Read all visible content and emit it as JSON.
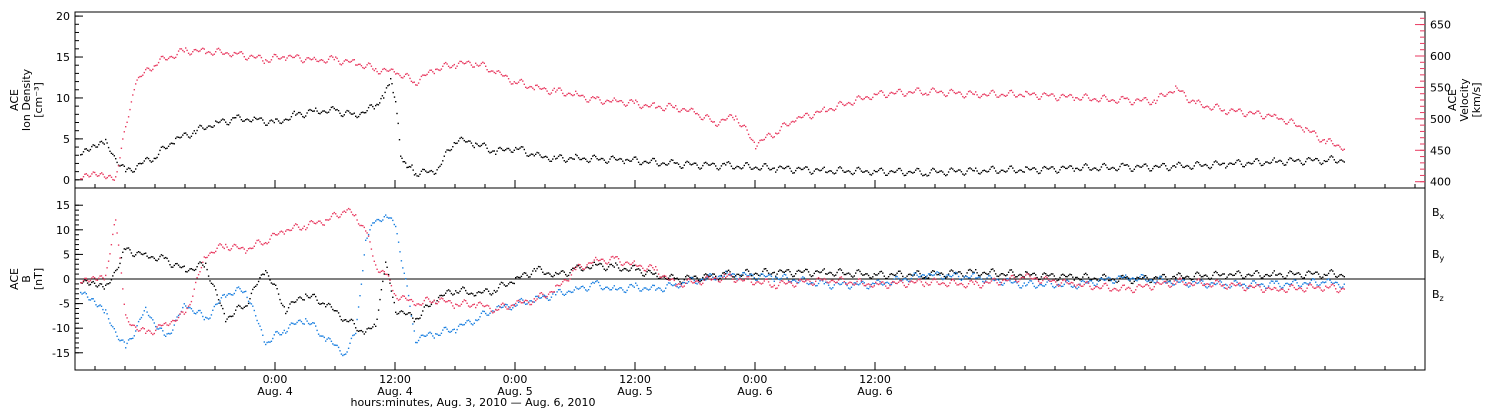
{
  "colors": {
    "black": "#000000",
    "pink": "#e83a60",
    "blue": "#1a7fe0"
  },
  "chart_data": [
    {
      "type": "scatter",
      "panel": "top",
      "ylabel_left": [
        "ACE",
        "Ion Density",
        "[cm⁻³]"
      ],
      "ylabel_right": [
        "ACE",
        "Velocity",
        "[km/s]"
      ],
      "ylim_left": [
        -1,
        20.5
      ],
      "yticks_left": [
        "0",
        "5",
        "10",
        "15",
        "20"
      ],
      "ylim_right": [
        390,
        670
      ],
      "yticks_right": [
        "400",
        "450",
        "500",
        "550",
        "600",
        "650"
      ],
      "xlim_hours": [
        -20,
        115
      ],
      "series": [
        {
          "axis": "left",
          "color": "black",
          "x": [
            -19.5,
            -17,
            -15,
            -12,
            -10,
            -8,
            -6,
            -4,
            -2,
            0,
            2,
            4,
            6,
            8,
            10,
            10.8,
            11.5,
            12,
            12.5,
            13,
            13.5,
            14,
            16,
            18,
            20,
            22,
            24,
            26,
            28,
            30,
            35,
            40,
            45,
            50,
            55,
            60,
            65,
            70,
            75,
            80,
            85,
            90,
            95,
            100,
            105,
            107
          ],
          "y": [
            3.5,
            4.5,
            1,
            3,
            5,
            6,
            7,
            7.5,
            7.5,
            7,
            8,
            8.5,
            8.5,
            8,
            9,
            10,
            12,
            10,
            3,
            2,
            1.5,
            1,
            1,
            5,
            4.5,
            3.5,
            4,
            3,
            2.7,
            2.7,
            2.5,
            2,
            1.8,
            1.5,
            1.2,
            1.1,
            1,
            1.2,
            1.3,
            1.5,
            1.6,
            1.7,
            2,
            2.3,
            2.5,
            2.5
          ]
        },
        {
          "axis": "right",
          "color": "pink",
          "x": [
            -19.5,
            -16,
            -14,
            -12,
            -9,
            -7,
            -4,
            -1,
            1,
            4,
            6,
            8,
            10,
            12,
            14,
            16,
            18,
            20,
            22,
            24,
            26,
            28,
            30,
            32,
            34,
            36,
            38,
            40,
            42,
            44,
            46,
            48,
            50,
            52,
            55,
            60,
            65,
            70,
            75,
            80,
            85,
            88,
            90,
            92,
            95,
            100,
            103,
            105,
            107
          ],
          "y": [
            410,
            410,
            560,
            590,
            610,
            608,
            605,
            595,
            600,
            595,
            595,
            590,
            580,
            575,
            560,
            580,
            588,
            590,
            575,
            560,
            550,
            545,
            540,
            530,
            530,
            525,
            520,
            520,
            510,
            495,
            505,
            460,
            480,
            500,
            515,
            540,
            545,
            540,
            540,
            535,
            530,
            530,
            550,
            525,
            515,
            505,
            485,
            465,
            455
          ]
        }
      ]
    },
    {
      "type": "scatter",
      "panel": "bottom",
      "ylabel_left": [
        "ACE",
        "B",
        "[nT]"
      ],
      "ylim_left": [
        -18.5,
        18.5
      ],
      "yticks_left": [
        "-15",
        "-10",
        "-5",
        "0",
        "5",
        "10",
        "15"
      ],
      "xlim_hours": [
        -20,
        115
      ],
      "legend": [
        {
          "label": "B",
          "sub": "x",
          "color": "black"
        },
        {
          "label": "B",
          "sub": "y",
          "color": "blue"
        },
        {
          "label": "B",
          "sub": "z",
          "color": "pink"
        }
      ],
      "series": [
        {
          "name": "Bx",
          "color": "black",
          "x": [
            -19.5,
            -17,
            -15,
            -13,
            -11,
            -9,
            -7,
            -5,
            -3,
            -1,
            1,
            3,
            5,
            7,
            9,
            10,
            11,
            12,
            14,
            16,
            18,
            20,
            22,
            24,
            26,
            28,
            30,
            32,
            34,
            36,
            38,
            40,
            45,
            50,
            55,
            60,
            65,
            70,
            75,
            80,
            85,
            90,
            95,
            100,
            105,
            107
          ],
          "y": [
            0,
            -2,
            6,
            5,
            4,
            2,
            3,
            -8,
            -5,
            2,
            -6,
            -3,
            -5,
            -8,
            -11,
            -9,
            3,
            -6,
            -8,
            -4,
            -2,
            -3,
            -2,
            0,
            2,
            1,
            2,
            3,
            2.5,
            2,
            1,
            0,
            1,
            1.5,
            1.5,
            1,
            1,
            1.5,
            1,
            0.5,
            0,
            0.5,
            1,
            1,
            1.2,
            1
          ]
        },
        {
          "name": "By",
          "color": "blue",
          "x": [
            -19.5,
            -17,
            -15,
            -13,
            -11,
            -9,
            -7,
            -5,
            -3,
            -1,
            1,
            3,
            5,
            7,
            8,
            9,
            10,
            11,
            12,
            14,
            16,
            18,
            20,
            22,
            24,
            26,
            28,
            30,
            32,
            34,
            36,
            38,
            40,
            45,
            50,
            55,
            60,
            65,
            70,
            75,
            80,
            85,
            90,
            95,
            100,
            105,
            107
          ],
          "y": [
            -2,
            -7,
            -14,
            -6,
            -12,
            -5,
            -8,
            -3,
            -2,
            -13,
            -10,
            -8,
            -12,
            -15,
            -11,
            8,
            12,
            13,
            11,
            -12,
            -11,
            -10,
            -8,
            -6,
            -5,
            -4,
            -3,
            -2,
            -1,
            -2,
            -1.5,
            -2,
            -1,
            1,
            0.5,
            -1,
            -1,
            1,
            0.5,
            -1,
            -1,
            0.5,
            -0.5,
            -1,
            -1,
            -0.5,
            -1
          ]
        },
        {
          "name": "Bz",
          "color": "pink",
          "x": [
            -19.5,
            -17,
            -16,
            -15,
            -13,
            -11,
            -9,
            -7,
            -5,
            -3,
            -1,
            1,
            3,
            5,
            7,
            8,
            9,
            10,
            11,
            12,
            14,
            16,
            18,
            20,
            22,
            24,
            26,
            28,
            30,
            32,
            34,
            36,
            38,
            40,
            45,
            50,
            55,
            60,
            65,
            70,
            75,
            80,
            85,
            90,
            95,
            100,
            105,
            107
          ],
          "y": [
            0,
            0,
            13,
            -8,
            -11,
            -9,
            -7,
            5,
            7,
            6,
            8,
            10,
            11,
            12,
            14,
            13,
            10,
            3,
            1,
            -3,
            -5,
            -4,
            -5,
            -5,
            -6,
            -5,
            -4,
            -2,
            2,
            4,
            4,
            3,
            2,
            -1,
            0.5,
            -1,
            0,
            -1,
            -0.5,
            -1,
            0.5,
            -1,
            -2,
            -0.5,
            -1,
            -2,
            -1.5,
            -2
          ]
        }
      ],
      "zero_line": true
    }
  ],
  "x_axis": {
    "ticks": [
      {
        "hours": 0,
        "time": "0:00",
        "date": "Aug. 4"
      },
      {
        "hours": 12,
        "time": "12:00",
        "date": "Aug. 4"
      },
      {
        "hours": 24,
        "time": "0:00",
        "date": "Aug. 5"
      },
      {
        "hours": 36,
        "time": "12:00",
        "date": "Aug. 5"
      },
      {
        "hours": 48,
        "time": "0:00",
        "date": "Aug. 6"
      },
      {
        "hours": 60,
        "time": "12:00",
        "date": "Aug. 6"
      }
    ],
    "title": "hours:minutes, Aug.  3, 2010 — Aug.  6, 2010"
  }
}
